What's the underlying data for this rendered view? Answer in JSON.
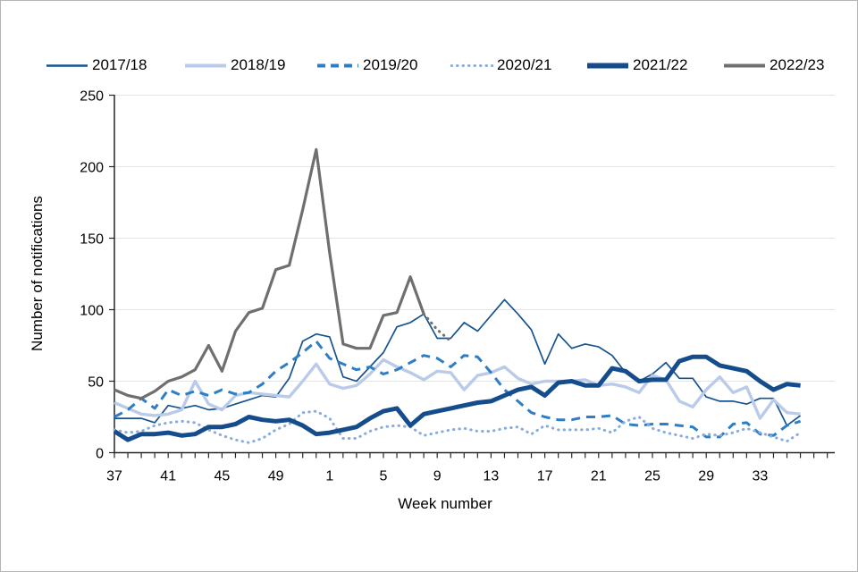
{
  "window": {
    "title": "Weekly number of notifications line chart"
  },
  "colors": {
    "background": "#ffffff",
    "frame_border": "#b5b5b5",
    "axis": "#262626",
    "grid": "#e4e4e4",
    "text": "#000000"
  },
  "legend": {
    "position": "top"
  },
  "chart_data": {
    "type": "line",
    "title": "",
    "xlabel": "Week number",
    "ylabel": "Number  of notifications",
    "ylim": [
      0,
      250
    ],
    "y_ticks": [
      0,
      50,
      100,
      150,
      200,
      250
    ],
    "grid": "faint horizontal lines at each y tick",
    "x_tick_label_step": 4,
    "x": [
      37,
      38,
      39,
      40,
      41,
      42,
      43,
      44,
      45,
      46,
      47,
      48,
      49,
      50,
      51,
      52,
      1,
      2,
      3,
      4,
      5,
      6,
      7,
      8,
      9,
      10,
      11,
      12,
      13,
      14,
      15,
      16,
      17,
      18,
      19,
      20,
      21,
      22,
      23,
      24,
      25,
      26,
      27,
      28,
      29,
      30,
      31,
      32,
      33,
      34,
      35,
      36
    ],
    "series": [
      {
        "name": "2017/18",
        "color": "#17538f",
        "style": "solid",
        "width": 1.7,
        "values": [
          24,
          24,
          24,
          21,
          33,
          31,
          33,
          30,
          31,
          34,
          37,
          40,
          39,
          52,
          78,
          83,
          81,
          53,
          50,
          60,
          70,
          88,
          91,
          97,
          80,
          80,
          91,
          85,
          96,
          107,
          97,
          86,
          62,
          83,
          73,
          76,
          74,
          68,
          56,
          50,
          55,
          63,
          52,
          52,
          39,
          36,
          36,
          34,
          38,
          38,
          19,
          26
        ]
      },
      {
        "name": "2018/19",
        "color": "#b9cbe8",
        "style": "solid",
        "width": 3.4,
        "values": [
          35,
          31,
          27,
          26,
          27,
          30,
          50,
          34,
          30,
          40,
          42,
          41,
          40,
          39,
          50,
          62,
          48,
          45,
          47,
          55,
          65,
          60,
          56,
          51,
          57,
          56,
          44,
          54,
          56,
          60,
          52,
          48,
          50,
          50,
          50,
          51,
          47,
          48,
          46,
          42,
          54,
          51,
          36,
          32,
          44,
          53,
          42,
          46,
          24,
          37,
          28,
          27
        ]
      },
      {
        "name": "2019/20",
        "color": "#2d7ec4",
        "style": "dashed",
        "width": 3,
        "values": [
          25,
          30,
          38,
          31,
          44,
          40,
          43,
          40,
          44,
          41,
          42,
          48,
          57,
          63,
          70,
          78,
          66,
          62,
          58,
          60,
          55,
          58,
          63,
          68,
          66,
          60,
          68,
          67,
          56,
          44,
          36,
          28,
          25,
          23,
          23,
          25,
          25,
          26,
          20,
          19,
          20,
          20,
          19,
          18,
          11,
          11,
          20,
          21,
          13,
          12,
          19,
          22
        ]
      },
      {
        "name": "2020/21",
        "color": "#88acdd",
        "style": "dotted",
        "width": 3,
        "values": [
          16,
          14,
          15,
          19,
          21,
          22,
          21,
          16,
          12,
          9,
          7,
          10,
          16,
          20,
          28,
          29,
          24,
          10,
          10,
          15,
          18,
          19,
          18,
          12,
          14,
          16,
          17,
          15,
          15,
          17,
          18,
          13,
          19,
          16,
          16,
          16,
          17,
          14,
          22,
          25,
          17,
          14,
          12,
          10,
          13,
          12,
          14,
          17,
          14,
          11,
          8,
          14
        ]
      },
      {
        "name": "2021/22",
        "color": "#154d8c",
        "style": "solid",
        "width": 5,
        "values": [
          15,
          9,
          13,
          13,
          14,
          12,
          13,
          18,
          18,
          20,
          25,
          23,
          22,
          23,
          19,
          13,
          14,
          16,
          18,
          24,
          29,
          31,
          19,
          27,
          29,
          31,
          33,
          35,
          36,
          40,
          44,
          46,
          40,
          49,
          50,
          47,
          47,
          59,
          57,
          50,
          51,
          51,
          64,
          67,
          67,
          61,
          59,
          57,
          50,
          44,
          48,
          47
        ]
      },
      {
        "name": "2022/23",
        "color": "#6f6f6f",
        "style": "solid",
        "width": 3.2,
        "tail_dotted_from_index": 23,
        "values": [
          44,
          40,
          38,
          43,
          50,
          53,
          58,
          75,
          57,
          85,
          98,
          101,
          128,
          131,
          170,
          212,
          140,
          76,
          73,
          73,
          96,
          98,
          123,
          97,
          86,
          78,
          null,
          null,
          null,
          null,
          null,
          null,
          null,
          null,
          null,
          null,
          null,
          null,
          null,
          null,
          null,
          null,
          null,
          null,
          null,
          null,
          null,
          null,
          null,
          null,
          null,
          null
        ]
      }
    ]
  }
}
